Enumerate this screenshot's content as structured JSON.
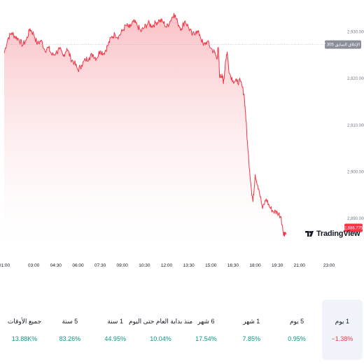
{
  "chart_data": {
    "type": "area",
    "x_ticks": [
      "01:00",
      "03:00",
      "04:30",
      "06:00",
      "07:30",
      "09:00",
      "10:30",
      "12:00",
      "13:30",
      "15:00",
      "16:30",
      "18:00",
      "19:30",
      "21:00",
      "23:00"
    ],
    "y_ticks": [
      "2,930.000",
      "2,920.000",
      "2,910.000",
      "2,900.000",
      "2,890.000"
    ],
    "ylim": [
      2884,
      2934
    ],
    "x_range": [
      "01:00",
      "23:00"
    ],
    "time_unit": "hour",
    "series": [
      {
        "values": [
          [
            1.0,
            2925.5
          ],
          [
            1.25,
            2928.6
          ],
          [
            1.5,
            2929.8
          ],
          [
            1.75,
            2929.0
          ],
          [
            2.0,
            2928.4
          ],
          [
            2.25,
            2927.2
          ],
          [
            2.5,
            2928.3
          ],
          [
            2.75,
            2930.7
          ],
          [
            3.0,
            2929.5
          ],
          [
            3.25,
            2927.4
          ],
          [
            3.5,
            2928.2
          ],
          [
            3.75,
            2926.1
          ],
          [
            4.0,
            2926.6
          ],
          [
            4.25,
            2925.0
          ],
          [
            4.5,
            2925.5
          ],
          [
            4.75,
            2926.3
          ],
          [
            5.0,
            2924.8
          ],
          [
            5.25,
            2926.5
          ],
          [
            5.5,
            2924.4
          ],
          [
            5.75,
            2923.4
          ],
          [
            6.0,
            2921.8
          ],
          [
            6.25,
            2922.9
          ],
          [
            6.5,
            2924.0
          ],
          [
            6.75,
            2924.5
          ],
          [
            7.0,
            2925.2
          ],
          [
            7.25,
            2924.3
          ],
          [
            7.5,
            2926.0
          ],
          [
            7.75,
            2925.4
          ],
          [
            8.0,
            2927.0
          ],
          [
            8.25,
            2928.8
          ],
          [
            8.5,
            2929.5
          ],
          [
            8.75,
            2929.0
          ],
          [
            9.0,
            2930.2
          ],
          [
            9.25,
            2931.4
          ],
          [
            9.5,
            2930.9
          ],
          [
            9.75,
            2932.2
          ],
          [
            10.0,
            2931.5
          ],
          [
            10.25,
            2930.1
          ],
          [
            10.5,
            2931.0
          ],
          [
            10.75,
            2931.9
          ],
          [
            11.0,
            2931.3
          ],
          [
            11.25,
            2931.9
          ],
          [
            11.5,
            2932.5
          ],
          [
            11.75,
            2932.2
          ],
          [
            12.0,
            2931.0
          ],
          [
            12.25,
            2932.4
          ],
          [
            12.5,
            2934.0
          ],
          [
            12.75,
            2932.0
          ],
          [
            13.0,
            2930.7
          ],
          [
            13.25,
            2932.4
          ],
          [
            13.5,
            2930.9
          ],
          [
            13.75,
            2929.3
          ],
          [
            14.0,
            2930.2
          ],
          [
            14.25,
            2929.4
          ],
          [
            14.5,
            2927.1
          ],
          [
            14.75,
            2928.0
          ],
          [
            15.0,
            2926.5
          ],
          [
            15.25,
            2925.6
          ],
          [
            15.4,
            2924.3
          ],
          [
            15.5,
            2926.7
          ],
          [
            15.6,
            2920.2
          ],
          [
            15.75,
            2921.0
          ],
          [
            15.85,
            2918.9
          ],
          [
            16.0,
            2924.0
          ],
          [
            16.1,
            2925.7
          ],
          [
            16.25,
            2921.2
          ],
          [
            16.5,
            2919.6
          ],
          [
            16.75,
            2919.3
          ],
          [
            17.0,
            2919.4
          ],
          [
            17.25,
            2916.7
          ],
          [
            17.35,
            2912.5
          ],
          [
            17.5,
            2905.0
          ],
          [
            17.75,
            2896.0
          ],
          [
            17.85,
            2893.6
          ],
          [
            18.0,
            2899.4
          ],
          [
            18.25,
            2896.3
          ],
          [
            18.5,
            2892.1
          ],
          [
            18.75,
            2894.2
          ],
          [
            19.0,
            2892.3
          ],
          [
            19.25,
            2891.5
          ],
          [
            19.5,
            2891.3
          ],
          [
            19.75,
            2890.4
          ],
          [
            19.9,
            2887.0
          ],
          [
            20.0,
            2886.8
          ]
        ]
      }
    ],
    "previous_close": {
      "label": "الإغلاق السابق",
      "value": "2,927.305",
      "y": 2927.305
    },
    "last_price": {
      "value": "2,886.775",
      "y": 2886.775
    },
    "colors": {
      "line": "#f23645",
      "area_top": "#f8b9be",
      "area_bottom": "#ffffff",
      "badge_prev": "#8a8e99",
      "badge_last": "#f23645",
      "positive": "#089981",
      "negative": "#f23645"
    },
    "grid": false
  },
  "watermark": {
    "text": "TradingView",
    "icon": "tradingview-logo-icon"
  },
  "periods": [
    {
      "label": "1 يوم",
      "value": "−1.38%",
      "trend": "negative",
      "active": true
    },
    {
      "label": "5 يوم",
      "value": "0.95%",
      "trend": "positive",
      "active": false
    },
    {
      "label": "1 شهر",
      "value": "7.85%",
      "trend": "positive",
      "active": false
    },
    {
      "label": "6 شهر",
      "value": "17.54%",
      "trend": "positive",
      "active": false
    },
    {
      "label": "منذ بداية العام حتى اليوم",
      "value": "10.04%",
      "trend": "positive",
      "active": false
    },
    {
      "label": "1 سنة",
      "value": "44.95%",
      "trend": "positive",
      "active": false
    },
    {
      "label": "5 سنة",
      "value": "83.26%",
      "trend": "positive",
      "active": false
    },
    {
      "label": "جميع الأوقات",
      "value": "13.88K%",
      "trend": "positive",
      "active": false
    }
  ]
}
